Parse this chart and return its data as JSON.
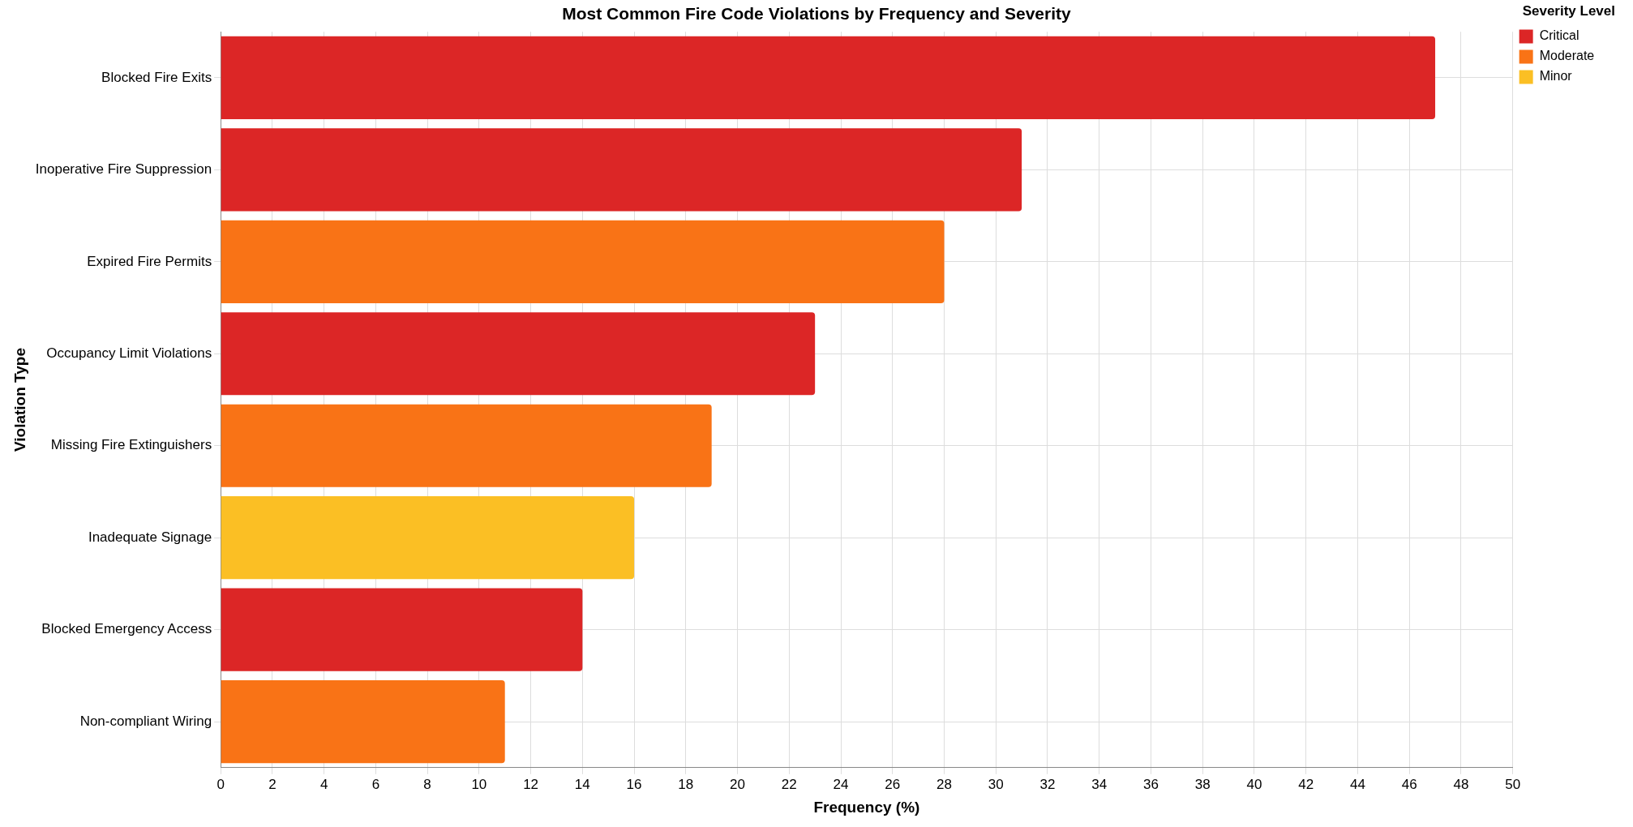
{
  "chart_data": {
    "type": "bar",
    "orientation": "horizontal",
    "stacked": true,
    "title": "Most Common Fire Code Violations by Frequency and Severity",
    "xlabel": "Frequency (%)",
    "ylabel": "Violation Type",
    "legend_title": "Severity Level",
    "legend": "top right",
    "grid": true,
    "categories": [
      "Blocked Fire Exits",
      "Inoperative Fire Suppression",
      "Expired Fire Permits",
      "Occupancy Limit Violations",
      "Missing Fire Extinguishers",
      "Inadequate Signage",
      "Blocked Emergency Access",
      "Non-compliant Wiring"
    ],
    "xlim": [
      0,
      50
    ],
    "xticks": [
      0,
      2,
      4,
      6,
      8,
      10,
      12,
      14,
      16,
      18,
      20,
      22,
      24,
      26,
      28,
      30,
      32,
      34,
      36,
      38,
      40,
      42,
      44,
      46,
      48,
      50
    ],
    "series": [
      {
        "name": "Critical",
        "color": "#dc2626",
        "values": [
          47,
          31,
          null,
          23,
          null,
          null,
          14,
          null
        ]
      },
      {
        "name": "Moderate",
        "color": "#f97316",
        "values": [
          null,
          null,
          28,
          null,
          19,
          null,
          null,
          11
        ]
      },
      {
        "name": "Minor",
        "color": "#fbbf24",
        "values": [
          null,
          null,
          null,
          null,
          null,
          16,
          null,
          null
        ]
      }
    ]
  }
}
